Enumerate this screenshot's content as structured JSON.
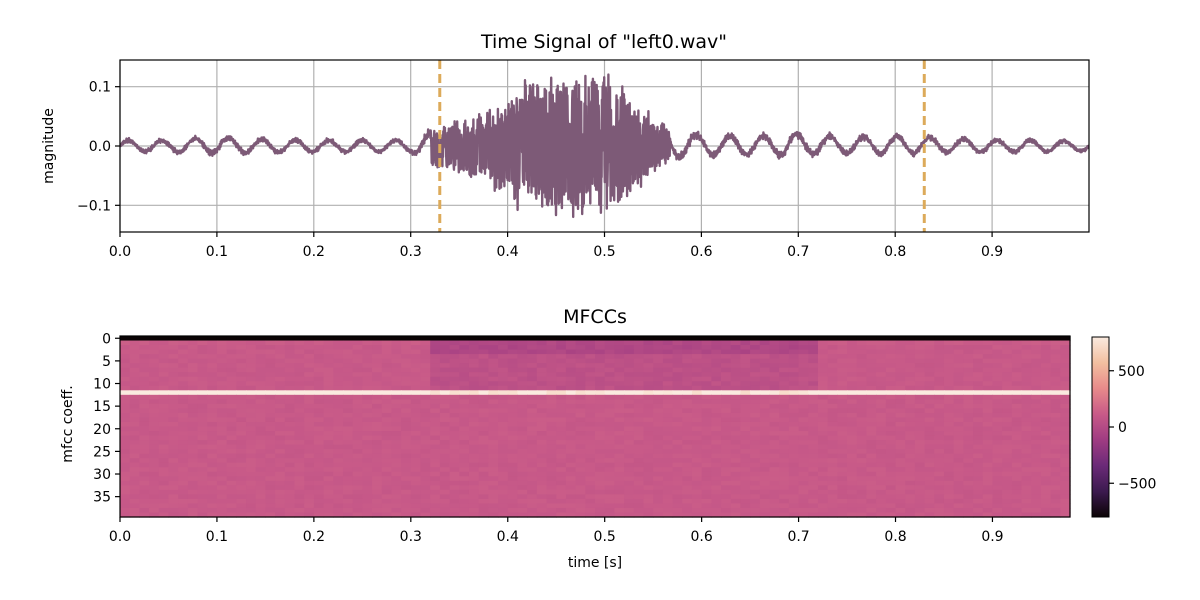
{
  "chart_data": [
    {
      "type": "line",
      "title": "Time Signal of \"left0.wav\"",
      "xlabel": "",
      "ylabel": "magnitude",
      "xlim": [
        0.0,
        1.0
      ],
      "ylim": [
        -0.145,
        0.145
      ],
      "grid": true,
      "x_ticks": [
        "0.0",
        "0.1",
        "0.2",
        "0.3",
        "0.4",
        "0.5",
        "0.6",
        "0.7",
        "0.8",
        "0.9"
      ],
      "y_ticks": [
        "0.1",
        "0.0",
        "−0.1"
      ],
      "series_color": "#7d5a77",
      "marker_color": "#dcaa5a",
      "vertical_markers": [
        0.33,
        0.83
      ],
      "envelope": {
        "x": [
          0.0,
          0.05,
          0.1,
          0.15,
          0.2,
          0.25,
          0.3,
          0.33,
          0.36,
          0.39,
          0.41,
          0.43,
          0.45,
          0.47,
          0.49,
          0.5,
          0.52,
          0.54,
          0.55,
          0.57,
          0.6,
          0.65,
          0.7,
          0.75,
          0.8,
          0.85,
          0.9,
          0.95,
          1.0
        ],
        "upper": [
          0.012,
          0.012,
          0.018,
          0.014,
          0.012,
          0.012,
          0.012,
          0.035,
          0.05,
          0.07,
          0.11,
          0.128,
          0.12,
          0.125,
          0.118,
          0.13,
          0.1,
          0.075,
          0.05,
          0.03,
          0.022,
          0.02,
          0.025,
          0.018,
          0.02,
          0.016,
          0.012,
          0.012,
          0.01
        ],
        "lower": [
          -0.012,
          -0.012,
          -0.015,
          -0.014,
          -0.012,
          -0.012,
          -0.012,
          -0.04,
          -0.055,
          -0.08,
          -0.11,
          -0.11,
          -0.12,
          -0.13,
          -0.12,
          -0.12,
          -0.1,
          -0.065,
          -0.045,
          -0.025,
          -0.02,
          -0.018,
          -0.02,
          -0.016,
          -0.016,
          -0.014,
          -0.012,
          -0.012,
          -0.01
        ]
      }
    },
    {
      "type": "heatmap",
      "title": "MFCCs",
      "xlabel": "time [s]",
      "ylabel": "mfcc coeff.",
      "xlim": [
        0.0,
        0.98
      ],
      "ylim": [
        0,
        38
      ],
      "x_ticks": [
        "0.0",
        "0.1",
        "0.2",
        "0.3",
        "0.4",
        "0.5",
        "0.6",
        "0.7",
        "0.8",
        "0.9"
      ],
      "y_ticks": [
        "0",
        "5",
        "10",
        "15",
        "20",
        "25",
        "30",
        "35"
      ],
      "colormap": "flare",
      "colorbar": {
        "range": [
          -800,
          800
        ],
        "ticks": [
          "500",
          "0",
          "−500"
        ],
        "stops": [
          "#0b0405",
          "#3c1a4f",
          "#6b2a78",
          "#a03c82",
          "#c85a88",
          "#e88a8a",
          "#f2bfa0",
          "#faeadf"
        ]
      },
      "row_values": {
        "0": -1000,
        "1": 120,
        "12": 850,
        "default": 110
      },
      "active_region": [
        0.32,
        0.72
      ]
    }
  ]
}
